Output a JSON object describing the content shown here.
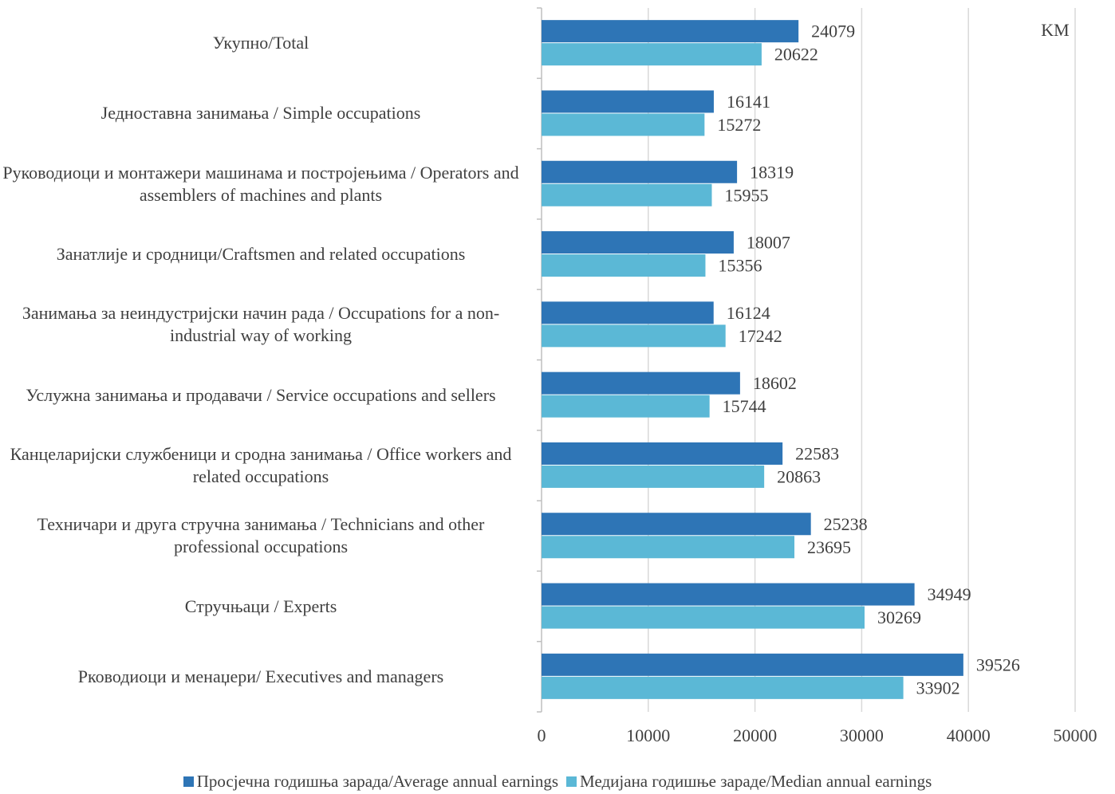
{
  "chart_data": {
    "type": "bar",
    "orientation": "horizontal",
    "unit": "KM",
    "categories": [
      "Укупно/Total",
      "Једноставна занимања / Simple occupations",
      "Руководиоци и монтажери машинама и постројењима / Operators and assemblers of machines and plants",
      "Занатлије и сродници/Craftsmen and related occupations",
      "Занимања за неиндустријски начин рада / Occupations for a non-industrial way of working",
      "Услужна занимања и продавачи / Service occupations and sellers",
      "Канцеларијски службеници и сродна занимања / Office workers and related occupations",
      "Техничари и друга стручна занимања / Technicians and other professional occupations",
      "Стручњаци / Experts",
      "Рководиоци и менаџери/ Executives and managers"
    ],
    "series": [
      {
        "name": "Просјечна годишња зарада/Average annual earnings",
        "color": "#2e75b6",
        "values": [
          24079,
          16141,
          18319,
          18007,
          16124,
          18602,
          22583,
          25238,
          34949,
          39526
        ]
      },
      {
        "name": "Медијана годишње зараде/Median annual earnings",
        "color": "#5bb8d6",
        "values": [
          20622,
          15272,
          15955,
          15356,
          17242,
          15744,
          20863,
          23695,
          30269,
          33902
        ]
      }
    ],
    "xlim": [
      0,
      50000
    ],
    "xticks": [
      0,
      10000,
      20000,
      30000,
      40000,
      50000
    ],
    "grid": true,
    "legend": "bottom"
  }
}
